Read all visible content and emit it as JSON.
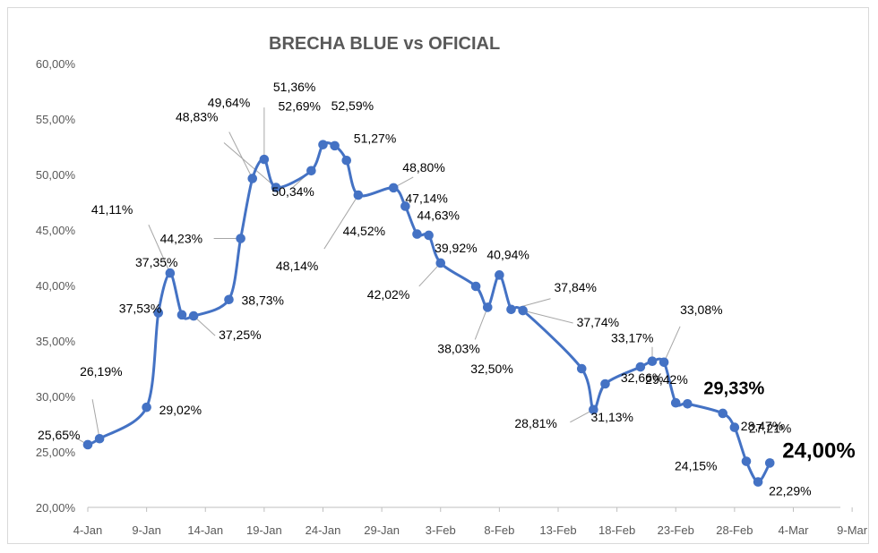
{
  "chart_data": {
    "type": "line",
    "title": "BRECHA BLUE vs OFICIAL",
    "xlabel": "",
    "ylabel": "",
    "ylim": [
      20,
      60
    ],
    "y_ticks": [
      "20,00%",
      "25,00%",
      "30,00%",
      "35,00%",
      "40,00%",
      "45,00%",
      "50,00%",
      "55,00%",
      "60,00%"
    ],
    "x_ticks": [
      "4-Jan",
      "9-Jan",
      "14-Jan",
      "19-Jan",
      "24-Jan",
      "29-Jan",
      "3-Feb",
      "8-Feb",
      "13-Feb",
      "18-Feb",
      "23-Feb",
      "28-Feb",
      "4-Mar",
      "9-Mar"
    ],
    "grid": false,
    "legend": "none",
    "line_color": "#4472c4",
    "series": [
      {
        "points": [
          {
            "x": "2023-01-04",
            "y": 25.65,
            "label": "25,65%"
          },
          {
            "x": "2023-01-05",
            "y": 26.19,
            "label": "26,19%"
          },
          {
            "x": "2023-01-09",
            "y": 29.02,
            "label": "29,02%"
          },
          {
            "x": "2023-01-10",
            "y": 37.53,
            "label": "37,53%"
          },
          {
            "x": "2023-01-11",
            "y": 41.11,
            "label": "41,11%"
          },
          {
            "x": "2023-01-12",
            "y": 37.35,
            "label": "37,35%"
          },
          {
            "x": "2023-01-13",
            "y": 37.25,
            "label": "37,25%"
          },
          {
            "x": "2023-01-16",
            "y": 38.73,
            "label": "38,73%"
          },
          {
            "x": "2023-01-17",
            "y": 44.23,
            "label": "44,23%"
          },
          {
            "x": "2023-01-18",
            "y": 49.64,
            "label": "49,64%"
          },
          {
            "x": "2023-01-19",
            "y": 51.36,
            "label": "51,36%"
          },
          {
            "x": "2023-01-20",
            "y": 48.83,
            "label": "48,83%"
          },
          {
            "x": "2023-01-23",
            "y": 50.34,
            "label": "50,34%"
          },
          {
            "x": "2023-01-24",
            "y": 52.69,
            "label": "52,69%"
          },
          {
            "x": "2023-01-25",
            "y": 52.59,
            "label": "52,59%"
          },
          {
            "x": "2023-01-26",
            "y": 51.27,
            "label": "51,27%"
          },
          {
            "x": "2023-01-27",
            "y": 48.14,
            "label": "48,14%"
          },
          {
            "x": "2023-01-30",
            "y": 48.8,
            "label": "48,80%"
          },
          {
            "x": "2023-01-31",
            "y": 47.14,
            "label": "47,14%"
          },
          {
            "x": "2023-02-01",
            "y": 44.63,
            "label": "44,63%"
          },
          {
            "x": "2023-02-02",
            "y": 44.52,
            "label": "44,52%"
          },
          {
            "x": "2023-02-03",
            "y": 42.02,
            "label": "42,02%"
          },
          {
            "x": "2023-02-06",
            "y": 39.92,
            "label": "39,92%"
          },
          {
            "x": "2023-02-07",
            "y": 38.03,
            "label": "38,03%"
          },
          {
            "x": "2023-02-08",
            "y": 40.94,
            "label": "40,94%"
          },
          {
            "x": "2023-02-09",
            "y": 37.84,
            "label": "37,84%"
          },
          {
            "x": "2023-02-10",
            "y": 37.74,
            "label": "37,74%"
          },
          {
            "x": "2023-02-15",
            "y": 32.5,
            "label": "32,50%"
          },
          {
            "x": "2023-02-16",
            "y": 28.81,
            "label": "28,81%"
          },
          {
            "x": "2023-02-17",
            "y": 31.13,
            "label": "31,13%"
          },
          {
            "x": "2023-02-20",
            "y": 32.66,
            "label": "32,66%"
          },
          {
            "x": "2023-02-21",
            "y": 33.17,
            "label": "33,17%"
          },
          {
            "x": "2023-02-22",
            "y": 33.08,
            "label": "33,08%"
          },
          {
            "x": "2023-02-23",
            "y": 29.42,
            "label": "29,42%"
          },
          {
            "x": "2023-02-24",
            "y": 29.33,
            "label": "29,33%"
          },
          {
            "x": "2023-02-27",
            "y": 28.47,
            "label": "28,47%"
          },
          {
            "x": "2023-02-28",
            "y": 27.21,
            "label": "27,21%"
          },
          {
            "x": "2023-03-01",
            "y": 24.15,
            "label": "24,15%"
          },
          {
            "x": "2023-03-02",
            "y": 22.29,
            "label": "22,29%"
          },
          {
            "x": "2023-03-03",
            "y": 24.0,
            "label": "24,00%"
          }
        ]
      }
    ]
  }
}
